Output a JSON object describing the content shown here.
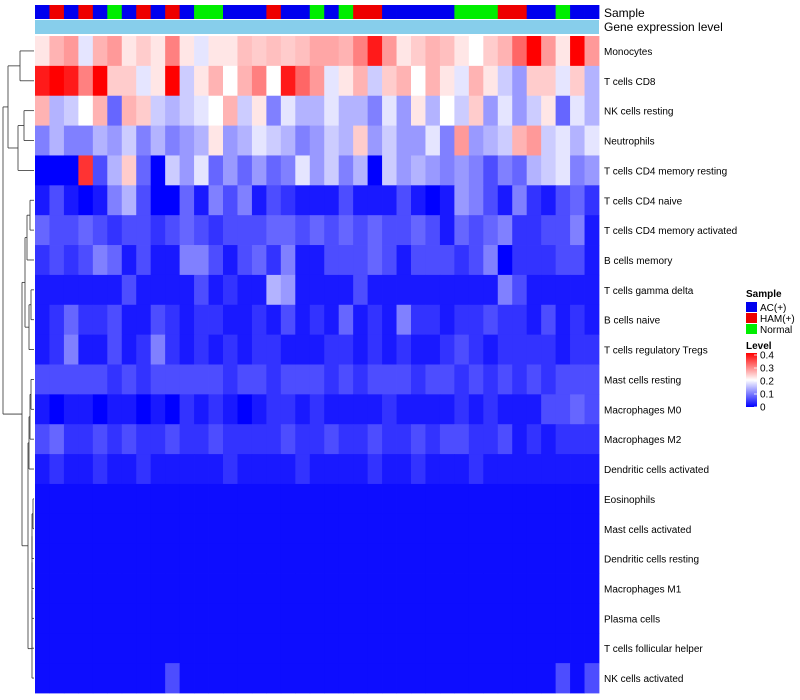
{
  "chart_data": {
    "type": "heatmap",
    "title": "",
    "annotation_labels": {
      "sample": "Sample",
      "gene_expression": "Gene expression level"
    },
    "sample_groups": [
      "AC(+)",
      "HAM(+)",
      "AC(+)",
      "HAM(+)",
      "AC(+)",
      "Normal",
      "AC(+)",
      "HAM(+)",
      "AC(+)",
      "HAM(+)",
      "AC(+)",
      "Normal",
      "Normal",
      "AC(+)",
      "AC(+)",
      "AC(+)",
      "HAM(+)",
      "AC(+)",
      "AC(+)",
      "Normal",
      "AC(+)",
      "Normal",
      "HAM(+)",
      "HAM(+)",
      "AC(+)",
      "AC(+)",
      "AC(+)",
      "AC(+)",
      "AC(+)",
      "Normal",
      "Normal",
      "Normal",
      "HAM(+)",
      "HAM(+)",
      "AC(+)",
      "AC(+)",
      "Normal",
      "AC(+)",
      "AC(+)"
    ],
    "legend_sample": {
      "title": "Sample",
      "entries": [
        {
          "label": "AC(+)",
          "color": "#0000ee"
        },
        {
          "label": "HAM(+)",
          "color": "#ee0000"
        },
        {
          "label": "Normal",
          "color": "#00ee00"
        }
      ]
    },
    "legend_level": {
      "title": "Level",
      "min": 0,
      "max": 0.4,
      "ticks": [
        "0.4",
        "0.3",
        "0.2",
        "0.1",
        "0"
      ],
      "colors": {
        "low": "#0000ff",
        "mid": "#ffffff",
        "high": "#ff0000"
      }
    },
    "columns": 39,
    "rows": [
      {
        "label": "Monocytes",
        "values": [
          0.22,
          0.26,
          0.28,
          0.18,
          0.26,
          0.28,
          0.22,
          0.24,
          0.22,
          0.3,
          0.22,
          0.18,
          0.22,
          0.22,
          0.25,
          0.24,
          0.25,
          0.24,
          0.25,
          0.27,
          0.27,
          0.26,
          0.3,
          0.38,
          0.28,
          0.22,
          0.24,
          0.26,
          0.25,
          0.22,
          0.2,
          0.24,
          0.26,
          0.32,
          0.4,
          0.28,
          0.22,
          0.4,
          0.28
        ]
      },
      {
        "label": "T cells CD8",
        "values": [
          0.38,
          0.4,
          0.38,
          0.3,
          0.4,
          0.24,
          0.24,
          0.18,
          0.22,
          0.4,
          0.16,
          0.22,
          0.26,
          0.2,
          0.26,
          0.3,
          0.2,
          0.38,
          0.32,
          0.28,
          0.18,
          0.22,
          0.26,
          0.16,
          0.24,
          0.26,
          0.2,
          0.26,
          0.22,
          0.18,
          0.26,
          0.22,
          0.16,
          0.12,
          0.24,
          0.24,
          0.18,
          0.24,
          0.14
        ]
      },
      {
        "label": "NK cells resting",
        "values": [
          0.26,
          0.14,
          0.16,
          0.2,
          0.26,
          0.08,
          0.26,
          0.24,
          0.16,
          0.14,
          0.16,
          0.18,
          0.2,
          0.26,
          0.16,
          0.22,
          0.1,
          0.18,
          0.14,
          0.14,
          0.18,
          0.14,
          0.14,
          0.1,
          0.18,
          0.12,
          0.22,
          0.14,
          0.2,
          0.16,
          0.24,
          0.12,
          0.18,
          0.12,
          0.16,
          0.22,
          0.08,
          0.18,
          0.14
        ]
      },
      {
        "label": "Neutrophils",
        "values": [
          0.1,
          0.14,
          0.1,
          0.1,
          0.14,
          0.12,
          0.16,
          0.1,
          0.14,
          0.1,
          0.12,
          0.14,
          0.22,
          0.12,
          0.14,
          0.18,
          0.16,
          0.14,
          0.1,
          0.12,
          0.16,
          0.14,
          0.24,
          0.12,
          0.16,
          0.12,
          0.12,
          0.18,
          0.1,
          0.28,
          0.12,
          0.14,
          0.16,
          0.26,
          0.28,
          0.16,
          0.18,
          0.14,
          0.18
        ]
      },
      {
        "label": "T cells CD4 memory resting",
        "values": [
          0.0,
          0.0,
          0.0,
          0.36,
          0.06,
          0.14,
          0.24,
          0.08,
          0.0,
          0.16,
          0.12,
          0.18,
          0.08,
          0.12,
          0.08,
          0.12,
          0.08,
          0.1,
          0.18,
          0.12,
          0.16,
          0.1,
          0.14,
          0.0,
          0.16,
          0.12,
          0.14,
          0.12,
          0.1,
          0.12,
          0.1,
          0.06,
          0.1,
          0.08,
          0.14,
          0.16,
          0.18,
          0.1,
          0.12
        ]
      },
      {
        "label": "T cells CD4 naive",
        "values": [
          0.02,
          0.06,
          0.02,
          0.0,
          0.02,
          0.1,
          0.14,
          0.06,
          0.0,
          0.0,
          0.08,
          0.02,
          0.1,
          0.06,
          0.1,
          0.02,
          0.06,
          0.04,
          0.02,
          0.02,
          0.02,
          0.06,
          0.02,
          0.02,
          0.02,
          0.06,
          0.02,
          0.0,
          0.02,
          0.12,
          0.1,
          0.06,
          0.02,
          0.1,
          0.04,
          0.02,
          0.06,
          0.08,
          0.04
        ]
      },
      {
        "label": "T cells CD4 memory activated",
        "values": [
          0.08,
          0.06,
          0.06,
          0.08,
          0.06,
          0.04,
          0.06,
          0.06,
          0.04,
          0.06,
          0.08,
          0.06,
          0.04,
          0.06,
          0.06,
          0.06,
          0.08,
          0.08,
          0.06,
          0.08,
          0.06,
          0.08,
          0.06,
          0.08,
          0.06,
          0.06,
          0.08,
          0.06,
          0.02,
          0.08,
          0.06,
          0.08,
          0.1,
          0.04,
          0.04,
          0.06,
          0.06,
          0.1,
          0.02
        ]
      },
      {
        "label": "B cells memory",
        "values": [
          0.04,
          0.06,
          0.04,
          0.06,
          0.1,
          0.08,
          0.02,
          0.06,
          0.02,
          0.02,
          0.1,
          0.1,
          0.06,
          0.02,
          0.06,
          0.08,
          0.04,
          0.1,
          0.02,
          0.02,
          0.06,
          0.06,
          0.06,
          0.08,
          0.06,
          0.02,
          0.06,
          0.06,
          0.06,
          0.04,
          0.06,
          0.1,
          0.0,
          0.04,
          0.04,
          0.04,
          0.06,
          0.06,
          0.02
        ]
      },
      {
        "label": "T cells gamma delta",
        "values": [
          0.02,
          0.02,
          0.02,
          0.02,
          0.02,
          0.02,
          0.06,
          0.02,
          0.02,
          0.02,
          0.02,
          0.06,
          0.02,
          0.04,
          0.02,
          0.02,
          0.14,
          0.12,
          0.02,
          0.02,
          0.02,
          0.02,
          0.06,
          0.02,
          0.02,
          0.02,
          0.02,
          0.02,
          0.02,
          0.02,
          0.02,
          0.02,
          0.1,
          0.06,
          0.02,
          0.02,
          0.02,
          0.02,
          0.02
        ]
      },
      {
        "label": "B cells naive",
        "values": [
          0.02,
          0.04,
          0.08,
          0.04,
          0.04,
          0.06,
          0.02,
          0.02,
          0.06,
          0.04,
          0.02,
          0.04,
          0.04,
          0.02,
          0.02,
          0.04,
          0.02,
          0.06,
          0.02,
          0.04,
          0.02,
          0.08,
          0.02,
          0.04,
          0.02,
          0.1,
          0.04,
          0.04,
          0.02,
          0.04,
          0.04,
          0.06,
          0.04,
          0.04,
          0.02,
          0.06,
          0.02,
          0.04,
          0.02
        ]
      },
      {
        "label": "T cells regulatory  Tregs",
        "values": [
          0.02,
          0.04,
          0.1,
          0.02,
          0.02,
          0.06,
          0.02,
          0.04,
          0.1,
          0.04,
          0.02,
          0.04,
          0.02,
          0.04,
          0.02,
          0.04,
          0.04,
          0.02,
          0.02,
          0.02,
          0.04,
          0.04,
          0.02,
          0.04,
          0.02,
          0.04,
          0.02,
          0.02,
          0.04,
          0.06,
          0.04,
          0.02,
          0.04,
          0.04,
          0.04,
          0.04,
          0.02,
          0.04,
          0.04
        ]
      },
      {
        "label": "Mast cells resting",
        "values": [
          0.06,
          0.06,
          0.06,
          0.06,
          0.06,
          0.04,
          0.06,
          0.04,
          0.06,
          0.06,
          0.06,
          0.06,
          0.06,
          0.04,
          0.06,
          0.06,
          0.04,
          0.06,
          0.06,
          0.06,
          0.04,
          0.06,
          0.04,
          0.06,
          0.06,
          0.06,
          0.04,
          0.06,
          0.06,
          0.04,
          0.06,
          0.04,
          0.06,
          0.04,
          0.06,
          0.04,
          0.06,
          0.06,
          0.06
        ]
      },
      {
        "label": "Macrophages M0",
        "values": [
          0.02,
          0.0,
          0.02,
          0.02,
          0.0,
          0.02,
          0.02,
          0.0,
          0.02,
          0.0,
          0.04,
          0.02,
          0.04,
          0.02,
          0.0,
          0.02,
          0.04,
          0.04,
          0.02,
          0.04,
          0.02,
          0.02,
          0.02,
          0.02,
          0.04,
          0.02,
          0.02,
          0.02,
          0.02,
          0.04,
          0.02,
          0.04,
          0.02,
          0.02,
          0.02,
          0.06,
          0.06,
          0.08,
          0.06
        ]
      },
      {
        "label": "Macrophages M2",
        "values": [
          0.06,
          0.08,
          0.04,
          0.04,
          0.06,
          0.04,
          0.06,
          0.04,
          0.04,
          0.06,
          0.04,
          0.04,
          0.06,
          0.04,
          0.04,
          0.04,
          0.04,
          0.06,
          0.04,
          0.04,
          0.06,
          0.04,
          0.04,
          0.06,
          0.04,
          0.04,
          0.06,
          0.04,
          0.06,
          0.06,
          0.04,
          0.04,
          0.06,
          0.02,
          0.04,
          0.02,
          0.04,
          0.04,
          0.04
        ]
      },
      {
        "label": "Dendritic cells activated",
        "values": [
          0.02,
          0.04,
          0.02,
          0.02,
          0.04,
          0.02,
          0.02,
          0.04,
          0.02,
          0.02,
          0.02,
          0.02,
          0.02,
          0.04,
          0.02,
          0.02,
          0.02,
          0.02,
          0.04,
          0.02,
          0.02,
          0.02,
          0.02,
          0.04,
          0.02,
          0.02,
          0.04,
          0.02,
          0.02,
          0.02,
          0.04,
          0.02,
          0.02,
          0.02,
          0.02,
          0.02,
          0.02,
          0.02,
          0.02
        ]
      },
      {
        "label": "Eosinophils",
        "values": [
          0.01,
          0.01,
          0.01,
          0.01,
          0.01,
          0.01,
          0.01,
          0.01,
          0.01,
          0.01,
          0.01,
          0.01,
          0.01,
          0.01,
          0.01,
          0.01,
          0.01,
          0.01,
          0.01,
          0.01,
          0.01,
          0.01,
          0.01,
          0.01,
          0.01,
          0.01,
          0.01,
          0.01,
          0.01,
          0.01,
          0.01,
          0.01,
          0.01,
          0.01,
          0.01,
          0.01,
          0.01,
          0.01,
          0.01
        ]
      },
      {
        "label": "Mast cells activated",
        "values": [
          0.01,
          0.01,
          0.01,
          0.01,
          0.01,
          0.01,
          0.01,
          0.01,
          0.01,
          0.01,
          0.01,
          0.01,
          0.01,
          0.01,
          0.01,
          0.01,
          0.01,
          0.01,
          0.01,
          0.01,
          0.01,
          0.01,
          0.01,
          0.01,
          0.01,
          0.01,
          0.01,
          0.01,
          0.01,
          0.01,
          0.01,
          0.01,
          0.01,
          0.01,
          0.01,
          0.01,
          0.01,
          0.01,
          0.01
        ]
      },
      {
        "label": "Dendritic cells resting",
        "values": [
          0.01,
          0.01,
          0.01,
          0.01,
          0.01,
          0.01,
          0.01,
          0.01,
          0.01,
          0.01,
          0.01,
          0.01,
          0.01,
          0.01,
          0.01,
          0.01,
          0.01,
          0.01,
          0.01,
          0.01,
          0.01,
          0.01,
          0.01,
          0.01,
          0.01,
          0.01,
          0.01,
          0.01,
          0.01,
          0.01,
          0.01,
          0.01,
          0.01,
          0.01,
          0.01,
          0.01,
          0.01,
          0.01,
          0.01
        ]
      },
      {
        "label": "Macrophages M1",
        "values": [
          0.01,
          0.01,
          0.01,
          0.01,
          0.01,
          0.01,
          0.01,
          0.01,
          0.01,
          0.01,
          0.01,
          0.01,
          0.01,
          0.01,
          0.01,
          0.01,
          0.01,
          0.01,
          0.01,
          0.01,
          0.01,
          0.01,
          0.01,
          0.01,
          0.01,
          0.01,
          0.01,
          0.01,
          0.01,
          0.01,
          0.01,
          0.01,
          0.01,
          0.01,
          0.01,
          0.01,
          0.01,
          0.01,
          0.01
        ]
      },
      {
        "label": "Plasma cells",
        "values": [
          0.01,
          0.01,
          0.01,
          0.01,
          0.01,
          0.01,
          0.01,
          0.01,
          0.01,
          0.01,
          0.01,
          0.01,
          0.01,
          0.01,
          0.01,
          0.01,
          0.01,
          0.01,
          0.01,
          0.01,
          0.01,
          0.01,
          0.01,
          0.01,
          0.01,
          0.01,
          0.01,
          0.01,
          0.01,
          0.01,
          0.01,
          0.01,
          0.01,
          0.01,
          0.01,
          0.01,
          0.01,
          0.01,
          0.01
        ]
      },
      {
        "label": "T cells follicular helper",
        "values": [
          0.01,
          0.01,
          0.01,
          0.01,
          0.01,
          0.01,
          0.01,
          0.01,
          0.01,
          0.01,
          0.01,
          0.01,
          0.01,
          0.01,
          0.01,
          0.01,
          0.01,
          0.01,
          0.01,
          0.01,
          0.01,
          0.01,
          0.01,
          0.01,
          0.01,
          0.01,
          0.01,
          0.01,
          0.01,
          0.01,
          0.01,
          0.01,
          0.01,
          0.01,
          0.01,
          0.01,
          0.01,
          0.01,
          0.01
        ]
      },
      {
        "label": "NK cells activated",
        "values": [
          0.01,
          0.01,
          0.01,
          0.01,
          0.01,
          0.01,
          0.01,
          0.01,
          0.01,
          0.06,
          0.01,
          0.01,
          0.01,
          0.01,
          0.01,
          0.01,
          0.01,
          0.01,
          0.01,
          0.01,
          0.01,
          0.01,
          0.01,
          0.01,
          0.01,
          0.01,
          0.01,
          0.01,
          0.01,
          0.01,
          0.01,
          0.01,
          0.01,
          0.01,
          0.01,
          0.01,
          0.06,
          0.01,
          0.06
        ]
      }
    ]
  }
}
